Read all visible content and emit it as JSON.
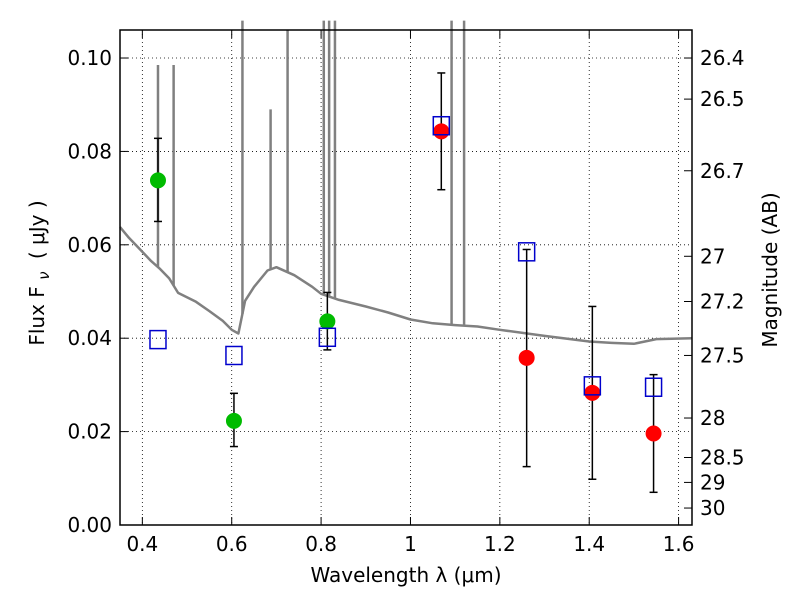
{
  "chart_data": {
    "type": "scatter",
    "xlabel": "Wavelength  λ (μm)",
    "ylabel_left": "Flux  F",
    "ylabel_left_sub": "ν",
    "ylabel_left_unit": "( μJy )",
    "ylabel_right": "Magnitude (AB)",
    "xlim": [
      0.35,
      1.63
    ],
    "ylim": [
      0.0,
      0.106
    ],
    "grid": true,
    "x_ticks": [
      0.4,
      0.6,
      0.8,
      1.0,
      1.2,
      1.4,
      1.6
    ],
    "x_tick_labels": [
      "0.4",
      "0.6",
      "0.8",
      "1",
      "1.2",
      "1.4",
      "1.6"
    ],
    "y_ticks": [
      0.0,
      0.02,
      0.04,
      0.06,
      0.08,
      0.1
    ],
    "y_tick_labels": [
      "0.00",
      "0.02",
      "0.04",
      "0.06",
      "0.08",
      "0.10"
    ],
    "mag_ticks": [
      "26.4",
      "26.5",
      "26.7",
      "27",
      "27.2",
      "27.5",
      "28",
      "28.5",
      "29",
      "30"
    ],
    "mag_zero_point": 23.9,
    "colors": {
      "template": "#808080",
      "green": "#00bb00",
      "red": "#ff0000",
      "model": "#0000cc",
      "errorbar": "#000000"
    },
    "series": [
      {
        "marker": "circle",
        "color": "green",
        "x": [
          0.435,
          0.605,
          0.814
        ],
        "y": [
          0.0738,
          0.0223,
          0.0436
        ],
        "yerr_low": [
          0.065,
          0.0168,
          0.0375
        ],
        "yerr_high": [
          0.0828,
          0.0282,
          0.0498
        ]
      },
      {
        "marker": "circle",
        "color": "red",
        "x": [
          1.069,
          1.26,
          1.407,
          1.544
        ],
        "y": [
          0.0843,
          0.0358,
          0.0283,
          0.0196
        ],
        "yerr_low": [
          0.0718,
          0.0125,
          0.0098,
          0.007
        ],
        "yerr_high": [
          0.0968,
          0.059,
          0.0468,
          0.0322
        ]
      },
      {
        "marker": "open-square",
        "color": "model",
        "x": [
          0.435,
          0.605,
          0.814,
          1.069,
          1.26,
          1.407,
          1.544
        ],
        "y": [
          0.0397,
          0.0363,
          0.0402,
          0.0855,
          0.0585,
          0.0298,
          0.0295
        ]
      }
    ],
    "template": {
      "baseline": [
        [
          0.35,
          0.0638
        ],
        [
          0.37,
          0.0615
        ],
        [
          0.4,
          0.0585
        ],
        [
          0.42,
          0.0565
        ],
        [
          0.44,
          0.0548
        ],
        [
          0.46,
          0.0528
        ],
        [
          0.48,
          0.0497
        ],
        [
          0.52,
          0.0478
        ],
        [
          0.55,
          0.0458
        ],
        [
          0.58,
          0.0437
        ],
        [
          0.6,
          0.0418
        ],
        [
          0.615,
          0.041
        ],
        [
          0.63,
          0.048
        ],
        [
          0.65,
          0.051
        ],
        [
          0.68,
          0.0545
        ],
        [
          0.7,
          0.0552
        ],
        [
          0.74,
          0.0535
        ],
        [
          0.78,
          0.051
        ],
        [
          0.8,
          0.0495
        ],
        [
          0.84,
          0.0482
        ],
        [
          0.9,
          0.0468
        ],
        [
          0.95,
          0.0455
        ],
        [
          1.0,
          0.044
        ],
        [
          1.05,
          0.0432
        ],
        [
          1.1,
          0.0428
        ],
        [
          1.15,
          0.0425
        ],
        [
          1.2,
          0.0418
        ],
        [
          1.3,
          0.0405
        ],
        [
          1.4,
          0.0393
        ],
        [
          1.45,
          0.039
        ],
        [
          1.5,
          0.0388
        ],
        [
          1.55,
          0.0398
        ],
        [
          1.63,
          0.04
        ]
      ],
      "lines": [
        [
          0.435,
          0.0985
        ],
        [
          0.47,
          0.0985
        ],
        [
          0.624,
          0.108
        ],
        [
          0.687,
          0.089
        ],
        [
          0.725,
          0.106
        ],
        [
          0.806,
          0.108
        ],
        [
          0.818,
          0.108
        ],
        [
          0.831,
          0.108
        ],
        [
          1.092,
          0.108
        ],
        [
          1.12,
          0.108
        ]
      ]
    }
  }
}
